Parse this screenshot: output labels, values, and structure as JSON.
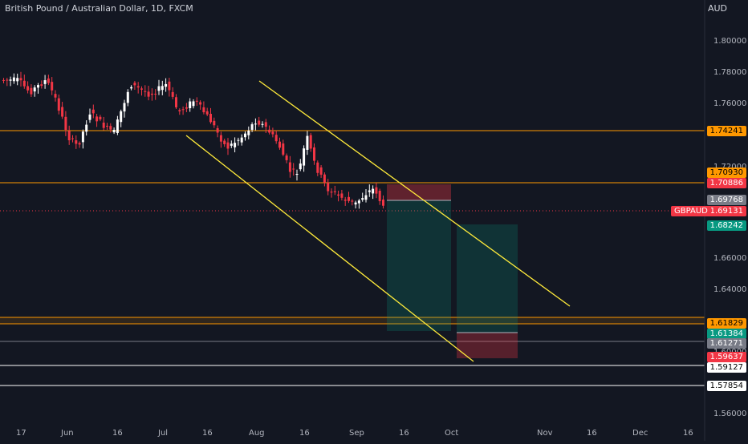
{
  "header": {
    "title": "British Pound / Australian Dollar, 1D, FXCM",
    "currency": "AUD"
  },
  "price_axis": {
    "ticks": [
      "1.80000",
      "1.78000",
      "1.76000",
      "1.72000",
      "1.70000",
      "1.66000",
      "1.64000",
      "1.60000",
      "1.56000"
    ]
  },
  "time_axis": {
    "labels": [
      "17",
      "Jun",
      "16",
      "Jul",
      "16",
      "Aug",
      "16",
      "Sep",
      "16",
      "Oct",
      "Nov",
      "16",
      "Dec",
      "16"
    ]
  },
  "price_tags": [
    {
      "label": "1.74241",
      "color": "#ff9800",
      "text_color": "#000000"
    },
    {
      "label": "1.70930",
      "color": "#ff9800",
      "text_color": "#000000"
    },
    {
      "label": "1.70886",
      "color": "#f23645",
      "text_color": "#ffffff"
    },
    {
      "label": "1.69768",
      "color": "#787b86",
      "text_color": "#ffffff"
    },
    {
      "label": "1.69131",
      "color": "#f23645",
      "text_color": "#ffffff"
    },
    {
      "label": "1.68242",
      "color": "#089981",
      "text_color": "#ffffff"
    },
    {
      "label": "1.61829",
      "color": "#ff9800",
      "text_color": "#000000"
    },
    {
      "label": "1.61384",
      "color": "#089981",
      "text_color": "#ffffff"
    },
    {
      "label": "1.61271",
      "color": "#787b86",
      "text_color": "#ffffff"
    },
    {
      "label": "1.59637",
      "color": "#f23645",
      "text_color": "#ffffff"
    },
    {
      "label": "1.59127",
      "color": "#ffffff",
      "text_color": "#000000"
    },
    {
      "label": "1.57854",
      "color": "#ffffff",
      "text_color": "#000000"
    }
  ],
  "symbol_tag": "GBPAUD",
  "colors": {
    "background": "#131722",
    "up": "#ffffff",
    "down": "#f23645",
    "channel": "#ffeb3b",
    "level_orange": "#ff9800",
    "level_white": "#ffffff",
    "long_target": "#089981",
    "long_stop": "#f23645"
  }
}
